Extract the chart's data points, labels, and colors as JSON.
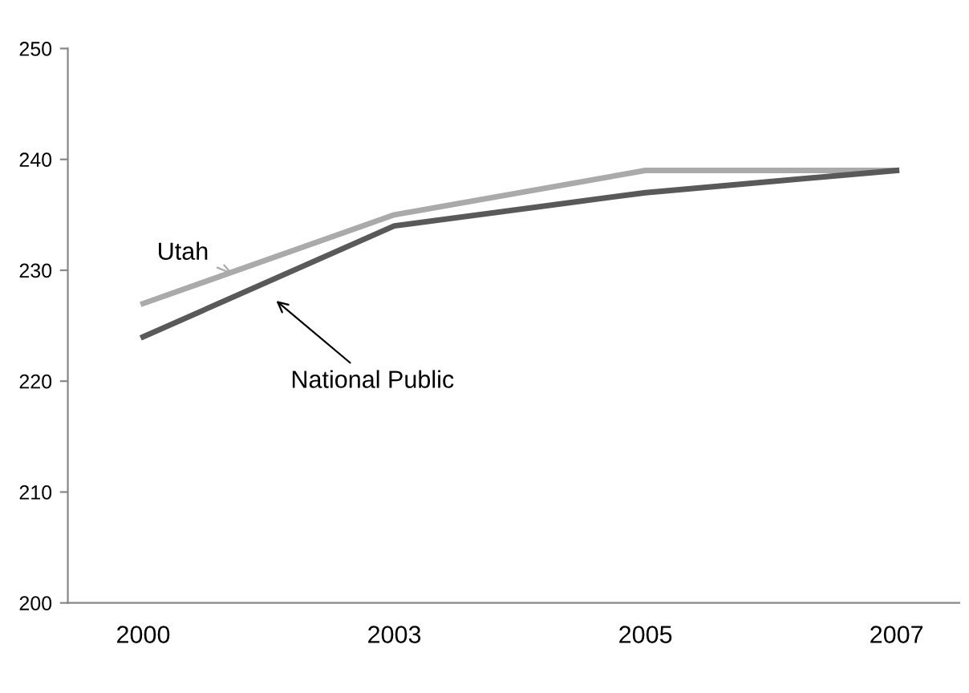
{
  "chart_data": {
    "type": "line",
    "categories": [
      "2000",
      "2003",
      "2005",
      "2007"
    ],
    "series": [
      {
        "name": "Utah",
        "color": "#aaaaaa",
        "values": [
          227,
          235,
          239,
          239
        ]
      },
      {
        "name": "National Public",
        "color": "#595959",
        "values": [
          224,
          234,
          237,
          239
        ]
      }
    ],
    "ylim": [
      200,
      250
    ],
    "yticks": [
      200,
      210,
      220,
      230,
      240,
      250
    ],
    "grid": false,
    "legend": "top left",
    "marker": "none",
    "line_style": "solid"
  }
}
